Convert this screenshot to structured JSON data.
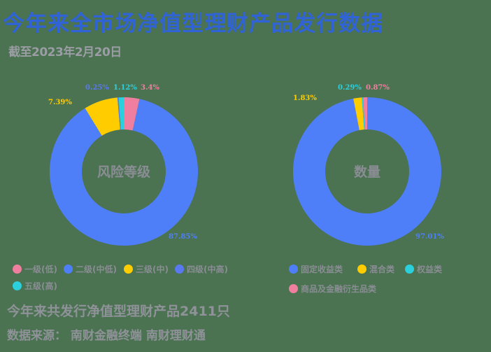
{
  "header": {
    "title": "今年来全市场净值型理财产品发行数据",
    "subtitle": "截至2023年2月20日"
  },
  "footer": {
    "total": "今年来共发行净值型理财产品2411只",
    "source": "数据来源： 南财金融终端 南财理财通"
  },
  "colors": {
    "background": "#4b7352",
    "title": "#2f63d6",
    "blue": "#4f7ff8",
    "pink": "#f07f9f",
    "yellow": "#ffcc00",
    "violet": "#5a78ef",
    "cyan": "#2cd0dc"
  },
  "chart_data": [
    {
      "type": "pie",
      "variant": "donut",
      "center_label": "风险等级",
      "categories": [
        "一级(低)",
        "二级(中低)",
        "三级(中)",
        "四级(中高)",
        "五级(高)"
      ],
      "values": [
        3.4,
        87.85,
        7.39,
        0.25,
        1.12
      ],
      "labels": [
        "3.4%",
        "87.85%",
        "7.39%",
        "0.25%",
        "1.12%"
      ],
      "colors": [
        "#f07f9f",
        "#4f7ff8",
        "#ffcc00",
        "#5a78ef",
        "#2cd0dc"
      ],
      "legend_position": "bottom"
    },
    {
      "type": "pie",
      "variant": "donut",
      "center_label": "数量",
      "categories": [
        "固定收益类",
        "混合类",
        "权益类",
        "商品及金融衍生品类"
      ],
      "values": [
        97.01,
        1.83,
        0.29,
        0.87
      ],
      "labels": [
        "97.01%",
        "1.83%",
        "0.29%",
        "0.87%"
      ],
      "colors": [
        "#4f7ff8",
        "#ffcc00",
        "#2cd0dc",
        "#f07f9f"
      ],
      "legend_position": "bottom"
    }
  ]
}
